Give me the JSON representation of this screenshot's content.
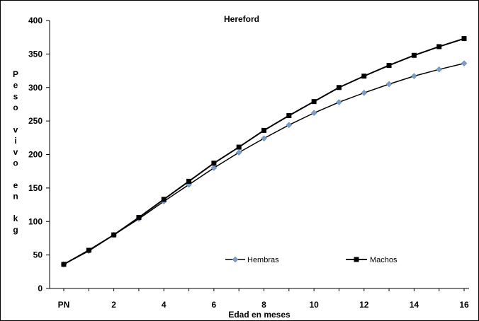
{
  "chart_data": {
    "type": "line",
    "title": "Hereford",
    "xlabel": "Edad en meses",
    "ylabel": "Peso vivo en kg",
    "ylabel_lines": [
      "P",
      "e",
      "s",
      "o",
      "",
      "v",
      "i",
      "v",
      "o",
      "",
      "e",
      "n",
      "",
      "k",
      "g"
    ],
    "ylim": [
      0,
      400
    ],
    "yticks": [
      0,
      50,
      100,
      150,
      200,
      250,
      300,
      350,
      400
    ],
    "x_tick_labels": [
      "PN",
      "2",
      "4",
      "6",
      "8",
      "10",
      "12",
      "14",
      "16"
    ],
    "x_tick_positions": [
      0,
      2,
      4,
      6,
      8,
      10,
      12,
      14,
      16
    ],
    "x": [
      0,
      1,
      2,
      3,
      4,
      5,
      6,
      7,
      8,
      9,
      10,
      11,
      12,
      13,
      14,
      15,
      16
    ],
    "series": [
      {
        "name": "Hembras",
        "color": "#7a9cc6",
        "marker": "diamond",
        "values": [
          36,
          56,
          80,
          104,
          130,
          155,
          180,
          203,
          224,
          244,
          262,
          278,
          292,
          305,
          317,
          327,
          336
        ]
      },
      {
        "name": "Machos",
        "color": "#000000",
        "marker": "square",
        "values": [
          36,
          57,
          80,
          106,
          133,
          160,
          187,
          211,
          236,
          258,
          279,
          300,
          317,
          333,
          348,
          361,
          373
        ]
      }
    ],
    "grid": false,
    "legend_position": "bottom-right"
  }
}
